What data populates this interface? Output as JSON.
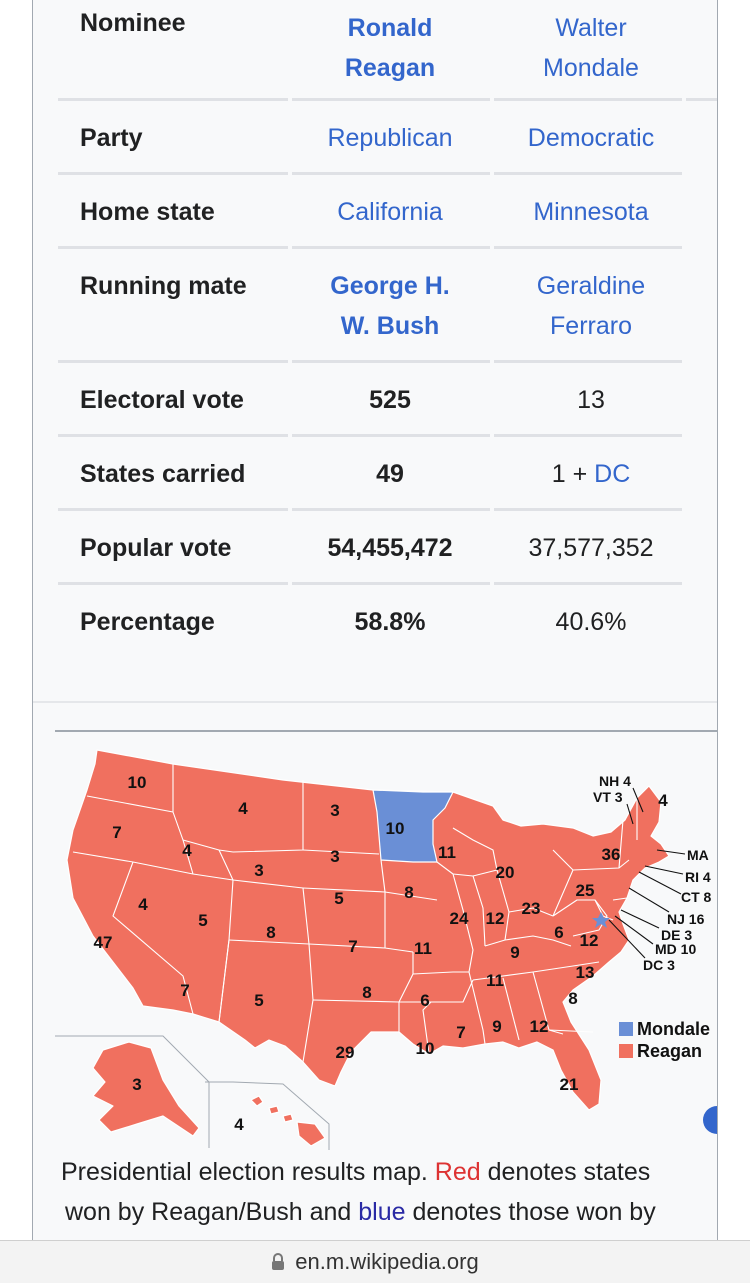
{
  "table": {
    "rows": [
      {
        "label": "Nominee",
        "reagan": "Ronald Reagan",
        "mondale": "Walter Mondale"
      },
      {
        "label": "Party",
        "reagan": "Republican",
        "mondale": "Democratic"
      },
      {
        "label": "Home state",
        "reagan": "California",
        "mondale": "Minnesota"
      },
      {
        "label": "Running mate",
        "reagan": "George H. W. Bush",
        "mondale": "Geraldine Ferraro"
      },
      {
        "label": "Electoral vote",
        "reagan": "525",
        "mondale": "13"
      },
      {
        "label": "States carried",
        "reagan": "49",
        "mondale_prefix": "1 + ",
        "mondale_link": "DC"
      },
      {
        "label": "Popular vote",
        "reagan": "54,455,472",
        "mondale": "37,577,352"
      },
      {
        "label": "Percentage",
        "reagan": "58.8%",
        "mondale": "40.6%"
      }
    ]
  },
  "map": {
    "colors": {
      "reagan": "#f0705f",
      "mondale": "#6a8fd6"
    },
    "legend": {
      "mondale": "Mondale",
      "reagan": "Reagan"
    },
    "state_labels": [
      {
        "id": "WA",
        "value": "10"
      },
      {
        "id": "OR",
        "value": "7"
      },
      {
        "id": "CA",
        "value": "47"
      },
      {
        "id": "ID",
        "value": "4"
      },
      {
        "id": "NV",
        "value": "4"
      },
      {
        "id": "MT",
        "value": "4"
      },
      {
        "id": "WY",
        "value": "3"
      },
      {
        "id": "UT",
        "value": "5"
      },
      {
        "id": "AZ",
        "value": "7"
      },
      {
        "id": "CO",
        "value": "8"
      },
      {
        "id": "NM",
        "value": "5"
      },
      {
        "id": "ND",
        "value": "3"
      },
      {
        "id": "SD",
        "value": "3"
      },
      {
        "id": "NE",
        "value": "5"
      },
      {
        "id": "KS",
        "value": "7"
      },
      {
        "id": "OK",
        "value": "8"
      },
      {
        "id": "TX",
        "value": "29"
      },
      {
        "id": "MN",
        "value": "10"
      },
      {
        "id": "IA",
        "value": "8"
      },
      {
        "id": "MO",
        "value": "11"
      },
      {
        "id": "AR",
        "value": "6"
      },
      {
        "id": "LA",
        "value": "10"
      },
      {
        "id": "WI",
        "value": "11"
      },
      {
        "id": "IL",
        "value": "24"
      },
      {
        "id": "MI",
        "value": "20"
      },
      {
        "id": "IN",
        "value": "12"
      },
      {
        "id": "OH",
        "value": "23"
      },
      {
        "id": "KY",
        "value": "9"
      },
      {
        "id": "TN",
        "value": "11"
      },
      {
        "id": "MS",
        "value": "7"
      },
      {
        "id": "AL",
        "value": "9"
      },
      {
        "id": "GA",
        "value": "12"
      },
      {
        "id": "FL",
        "value": "21"
      },
      {
        "id": "SC",
        "value": "8"
      },
      {
        "id": "NC",
        "value": "13"
      },
      {
        "id": "VA",
        "value": "12"
      },
      {
        "id": "WV",
        "value": "6"
      },
      {
        "id": "PA",
        "value": "25"
      },
      {
        "id": "NY",
        "value": "36"
      },
      {
        "id": "ME",
        "value": "4"
      },
      {
        "id": "AK",
        "value": "3"
      },
      {
        "id": "HI",
        "value": "4"
      }
    ],
    "callouts": [
      "NH 4",
      "VT 3",
      "MA",
      "RI 4",
      "CT 8",
      "NJ 16",
      "DE 3",
      "MD 10",
      "DC 3"
    ]
  },
  "caption": {
    "part1": "Presidential election results map. ",
    "red": "Red",
    "part2": " denotes states",
    "part3": "won by Reagan/Bush and ",
    "blue": "blue",
    "part4": " denotes those won by"
  },
  "browser": {
    "url": "en.m.wikipedia.org"
  }
}
